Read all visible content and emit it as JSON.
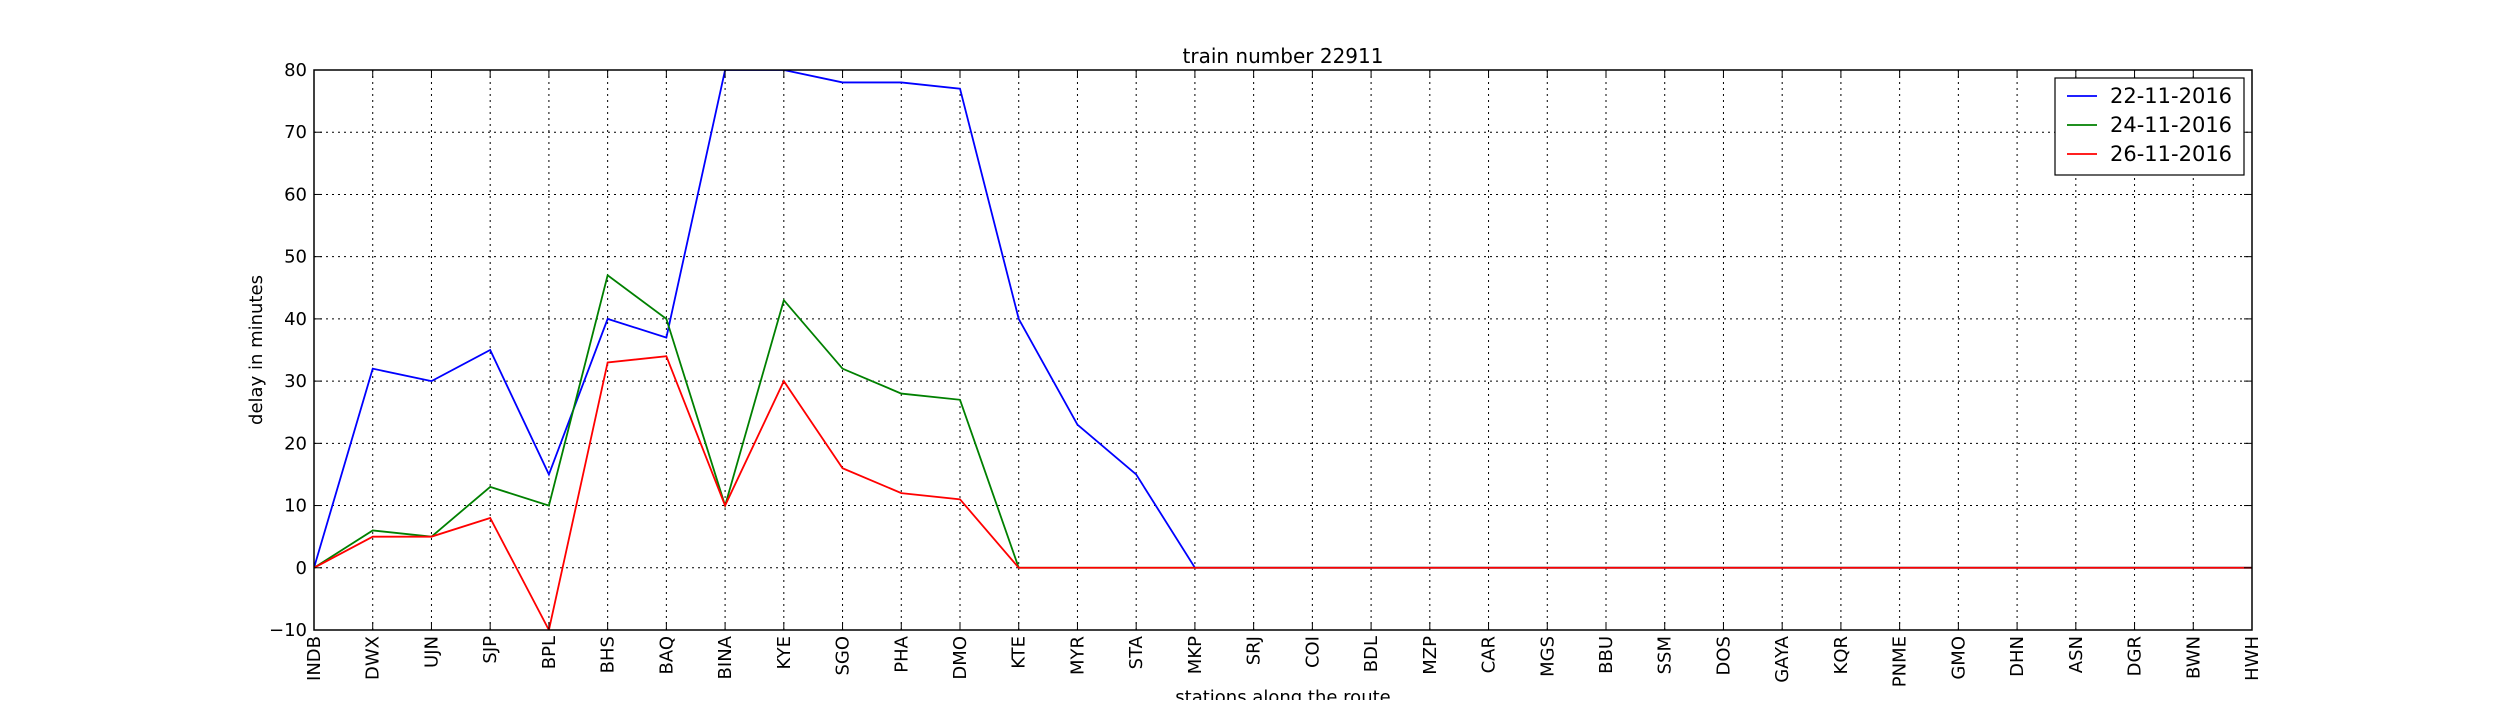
{
  "chart_data": {
    "type": "line",
    "title": "train number 22911",
    "xlabel": "stations along the route",
    "ylabel": "delay in minutes",
    "ylim": [
      -10,
      80
    ],
    "yticks": [
      "−10",
      "0",
      "10",
      "20",
      "30",
      "40",
      "50",
      "60",
      "70",
      "80"
    ],
    "grid": true,
    "legend_position": "top-right",
    "categories": [
      "INDB",
      "DWX",
      "UJN",
      "SJP",
      "BPL",
      "BHS",
      "BAQ",
      "BINA",
      "KYE",
      "SGO",
      "PHA",
      "DMO",
      "KTE",
      "MYR",
      "STA",
      "MKP",
      "SRJ",
      "COI",
      "BDL",
      "MZP",
      "CAR",
      "MGS",
      "BBU",
      "SSM",
      "DOS",
      "GAYA",
      "KQR",
      "PNME",
      "GMO",
      "DHN",
      "ASN",
      "DGR",
      "BWN",
      "HWH"
    ],
    "series": [
      {
        "name": "22-11-2016",
        "color": "#0000ff",
        "values": [
          0,
          32,
          30,
          35,
          15,
          40,
          37,
          80,
          80,
          78,
          78,
          77,
          40,
          23,
          15,
          0,
          0,
          0,
          0,
          0,
          0,
          0,
          0,
          0,
          0,
          0,
          0,
          0,
          0,
          0,
          0,
          0,
          0,
          0
        ]
      },
      {
        "name": "24-11-2016",
        "color": "#008000",
        "values": [
          0,
          6,
          5,
          13,
          10,
          47,
          40,
          10,
          43,
          32,
          28,
          27,
          0,
          0,
          0,
          0,
          0,
          0,
          0,
          0,
          0,
          0,
          0,
          0,
          0,
          0,
          0,
          0,
          0,
          0,
          0,
          0,
          0,
          0
        ]
      },
      {
        "name": "26-11-2016",
        "color": "#ff0000",
        "values": [
          0,
          5,
          5,
          8,
          -10,
          33,
          34,
          10,
          30,
          16,
          12,
          11,
          0,
          0,
          0,
          0,
          0,
          0,
          0,
          0,
          0,
          0,
          0,
          0,
          0,
          0,
          0,
          0,
          0,
          0,
          0,
          0,
          0,
          0
        ]
      }
    ]
  }
}
